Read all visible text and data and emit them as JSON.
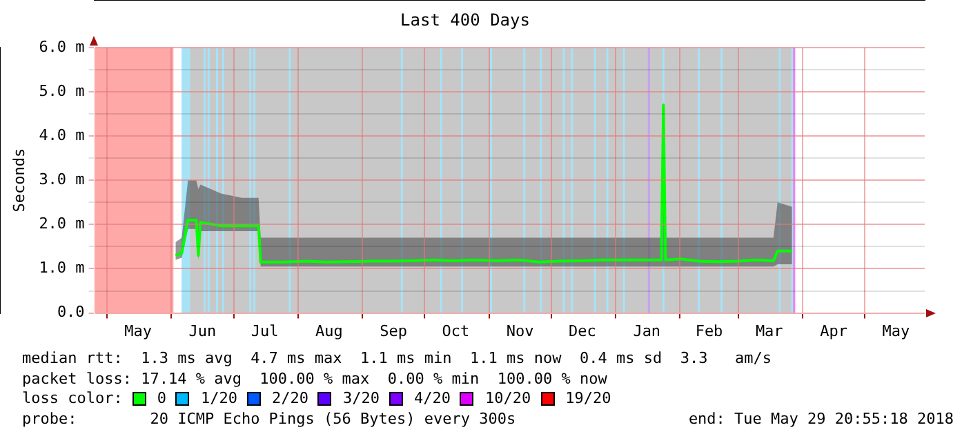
{
  "chart_data": {
    "type": "line",
    "title": "Last 400 Days",
    "ylabel": "Seconds",
    "xlim": [
      "2017-04-24T20:55",
      "2018-05-29T20:55"
    ],
    "xticks": [
      {
        "value": "2017-05-01",
        "label": null
      },
      {
        "value": "2017-05-16",
        "label": "May"
      },
      {
        "value": "2017-06-01",
        "label": null
      },
      {
        "value": "2017-06-16",
        "label": "Jun"
      },
      {
        "value": "2017-07-01",
        "label": null
      },
      {
        "value": "2017-07-16",
        "label": "Jul"
      },
      {
        "value": "2017-08-01",
        "label": null
      },
      {
        "value": "2017-08-16",
        "label": "Aug"
      },
      {
        "value": "2017-09-01",
        "label": null
      },
      {
        "value": "2017-09-16",
        "label": "Sep"
      },
      {
        "value": "2017-10-01",
        "label": null
      },
      {
        "value": "2017-10-16",
        "label": "Oct"
      },
      {
        "value": "2017-11-01",
        "label": null
      },
      {
        "value": "2017-11-16",
        "label": "Nov"
      },
      {
        "value": "2017-12-01",
        "label": null
      },
      {
        "value": "2017-12-16",
        "label": "Dec"
      },
      {
        "value": "2018-01-01",
        "label": null
      },
      {
        "value": "2018-01-16",
        "label": "Jan"
      },
      {
        "value": "2018-02-01",
        "label": null
      },
      {
        "value": "2018-02-15",
        "label": "Feb"
      },
      {
        "value": "2018-03-01",
        "label": null
      },
      {
        "value": "2018-03-16",
        "label": "Mar"
      },
      {
        "value": "2018-04-01",
        "label": null
      },
      {
        "value": "2018-04-16",
        "label": "Apr"
      },
      {
        "value": "2018-05-01",
        "label": null
      },
      {
        "value": "2018-05-16",
        "label": "May"
      }
    ],
    "ylim": [
      0,
      6
    ],
    "yticks": [
      {
        "value": 0,
        "label": "0.0"
      },
      {
        "value": 0.5,
        "label": null
      },
      {
        "value": 1,
        "label": "1.0 m"
      },
      {
        "value": 1.5,
        "label": null
      },
      {
        "value": 2,
        "label": "2.0 m"
      },
      {
        "value": 2.5,
        "label": null
      },
      {
        "value": 3,
        "label": "3.0 m"
      },
      {
        "value": 3.5,
        "label": null
      },
      {
        "value": 4,
        "label": "4.0 m"
      },
      {
        "value": 4.5,
        "label": null
      },
      {
        "value": 5,
        "label": "5.0 m"
      },
      {
        "value": 5.5,
        "label": null
      },
      {
        "value": 6,
        "label": "6.0 m"
      }
    ],
    "grid": true,
    "x": [
      "2017-06-03",
      "2017-06-06",
      "2017-06-09",
      "2017-06-13",
      "2017-06-14",
      "2017-06-15",
      "2017-06-25",
      "2017-07-05",
      "2017-07-13",
      "2017-07-14",
      "2017-07-25",
      "2017-08-05",
      "2017-08-15",
      "2017-08-25",
      "2017-09-05",
      "2017-09-15",
      "2017-09-25",
      "2017-10-05",
      "2017-10-15",
      "2017-10-25",
      "2017-11-05",
      "2017-11-15",
      "2017-11-25",
      "2017-12-05",
      "2017-12-15",
      "2017-12-25",
      "2018-01-05",
      "2018-01-15",
      "2018-01-23",
      "2018-01-24",
      "2018-01-25",
      "2018-02-01",
      "2018-02-10",
      "2018-02-20",
      "2018-03-01",
      "2018-03-10",
      "2018-03-18",
      "2018-03-20",
      "2018-03-27"
    ],
    "series": [
      {
        "color": "#00ff00",
        "values": [
          1.3,
          1.35,
          2.1,
          2.1,
          1.3,
          2.05,
          1.97,
          1.97,
          1.97,
          1.15,
          1.15,
          1.17,
          1.15,
          1.16,
          1.17,
          1.17,
          1.18,
          1.2,
          1.18,
          1.2,
          1.18,
          1.2,
          1.15,
          1.17,
          1.18,
          1.2,
          1.2,
          1.2,
          1.2,
          4.7,
          1.2,
          1.22,
          1.17,
          1.16,
          1.17,
          1.2,
          1.18,
          1.4,
          1.4
        ],
        "lower": [
          1.2,
          1.25,
          1.9,
          1.9,
          1.2,
          1.85,
          1.85,
          1.85,
          1.85,
          1.05,
          1.05,
          1.05,
          1.05,
          1.05,
          1.05,
          1.05,
          1.05,
          1.05,
          1.05,
          1.05,
          1.05,
          1.05,
          1.05,
          1.05,
          1.05,
          1.05,
          1.05,
          1.05,
          1.05,
          1.05,
          1.05,
          1.05,
          1.05,
          1.05,
          1.05,
          1.05,
          1.05,
          1.1,
          1.1
        ],
        "upper": [
          1.6,
          1.7,
          3,
          3,
          2.8,
          2.9,
          2.7,
          2.6,
          2.6,
          1.7,
          1.7,
          1.7,
          1.7,
          1.7,
          1.7,
          1.7,
          1.7,
          1.7,
          1.7,
          1.7,
          1.7,
          1.7,
          1.7,
          1.7,
          1.7,
          1.7,
          1.7,
          1.7,
          1.7,
          4.8,
          1.7,
          1.7,
          1.7,
          1.7,
          1.7,
          1.7,
          1.7,
          2.5,
          2.4
        ]
      }
    ],
    "bands": [
      {
        "axis": "x",
        "from": "2017-04-24T20:55",
        "to": "2017-06-02",
        "color": "#ffa8a8"
      },
      {
        "axis": "x",
        "from": "2017-06-06",
        "to": "2018-03-28",
        "color": "#c8c8c8"
      },
      {
        "axis": "x",
        "from": "2017-06-06",
        "to": "2017-06-10",
        "color": "#a6e3f7"
      }
    ],
    "ref_lines": [
      {
        "axis": "x",
        "value": "2017-06-17",
        "color": "#a6e3f7"
      },
      {
        "axis": "x",
        "value": "2017-06-19",
        "color": "#a6e3f7"
      },
      {
        "axis": "x",
        "value": "2017-06-23",
        "color": "#a6e3f7"
      },
      {
        "axis": "x",
        "value": "2017-06-26",
        "color": "#a6e3f7"
      },
      {
        "axis": "x",
        "value": "2017-07-09",
        "color": "#a6e3f7"
      },
      {
        "axis": "x",
        "value": "2017-07-11",
        "color": "#a6e3f7"
      },
      {
        "axis": "x",
        "value": "2017-07-28",
        "color": "#a6e3f7"
      },
      {
        "axis": "x",
        "value": "2017-09-20",
        "color": "#a6e3f7"
      },
      {
        "axis": "x",
        "value": "2017-10-09",
        "color": "#a6e3f7"
      },
      {
        "axis": "x",
        "value": "2017-10-19",
        "color": "#a6e3f7"
      },
      {
        "axis": "x",
        "value": "2017-11-02",
        "color": "#a6e3f7"
      },
      {
        "axis": "x",
        "value": "2017-11-18",
        "color": "#a6e3f7"
      },
      {
        "axis": "x",
        "value": "2017-11-26",
        "color": "#a6e3f7"
      },
      {
        "axis": "x",
        "value": "2017-12-07",
        "color": "#a6e3f7"
      },
      {
        "axis": "x",
        "value": "2017-12-11",
        "color": "#a6e3f7"
      },
      {
        "axis": "x",
        "value": "2017-12-22",
        "color": "#a6e3f7"
      },
      {
        "axis": "x",
        "value": "2017-12-28",
        "color": "#a6e3f7"
      },
      {
        "axis": "x",
        "value": "2018-01-05",
        "color": "#a6e3f7"
      },
      {
        "axis": "x",
        "value": "2018-01-17",
        "color": "#c8a0f0"
      },
      {
        "axis": "x",
        "value": "2018-01-24",
        "color": "#a6e3f7"
      },
      {
        "axis": "x",
        "value": "2018-02-10",
        "color": "#a6e3f7"
      },
      {
        "axis": "x",
        "value": "2018-02-21",
        "color": "#a6e3f7"
      },
      {
        "axis": "x",
        "value": "2018-03-21",
        "color": "#a6e3f7"
      },
      {
        "axis": "x",
        "value": "2018-03-27",
        "color": "#a6e3f7"
      },
      {
        "axis": "x",
        "value": "2018-03-28",
        "color": "#f080f0"
      }
    ],
    "annotations": [
      "median rtt:  1.3 ms avg  4.7 ms max  1.1 ms min  1.1 ms now  0.4 ms sd  3.3   am/s",
      "packet loss: 17.14 % avg  100.00 % max  0.00 % min  100.00 % now",
      "loss color:",
      "0",
      "1/20",
      "2/20",
      "3/20",
      "4/20",
      "10/20",
      "19/20",
      "probe:        20 ICMP Echo Pings (56 Bytes) every 300s",
      "end: Tue May 29 20:55:18 2018"
    ]
  }
}
